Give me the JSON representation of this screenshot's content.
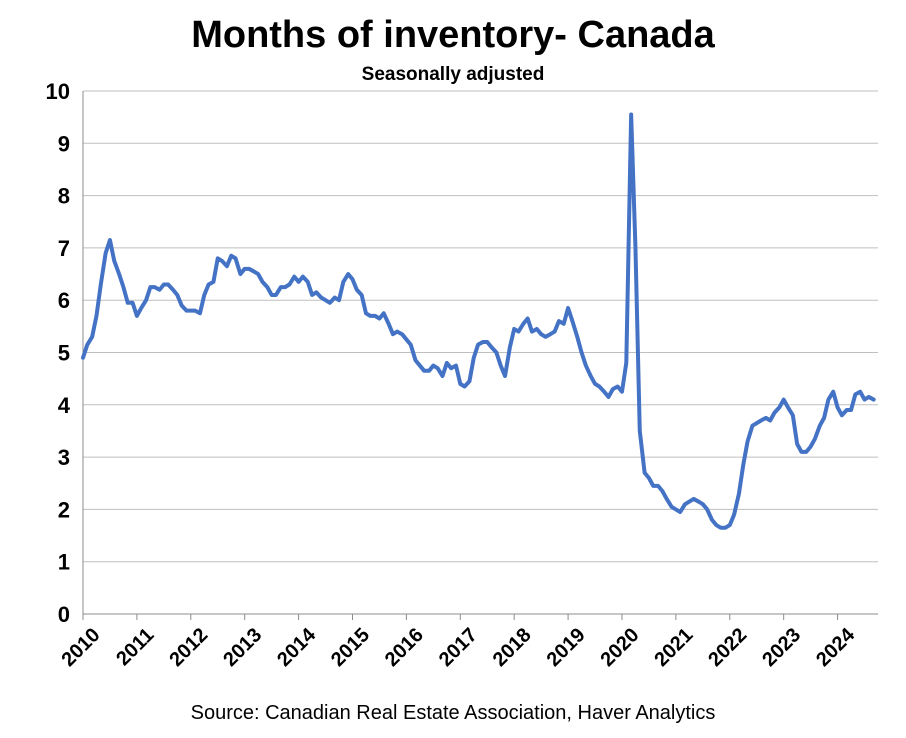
{
  "chart_data": {
    "type": "line",
    "title": "Months of inventory- Canada",
    "subtitle": "Seasonally adjusted",
    "source": "Source: Canadian Real Estate Association, Haver Analytics",
    "xlabel": "",
    "ylabel": "",
    "ylim": [
      0,
      10
    ],
    "yticks": [
      "0",
      "1",
      "2",
      "3",
      "4",
      "5",
      "6",
      "7",
      "8",
      "9",
      "10"
    ],
    "xticks": [
      "2010",
      "2011",
      "2012",
      "2013",
      "2014",
      "2015",
      "2016",
      "2017",
      "2018",
      "2019",
      "2020",
      "2021",
      "2022",
      "2023",
      "2024"
    ],
    "grid": true,
    "line_color": "#4472C4",
    "series": [
      {
        "x": [
          2010.0,
          2010.08,
          2010.17,
          2010.25,
          2010.33,
          2010.42,
          2010.5,
          2010.58,
          2010.67,
          2010.75,
          2010.83,
          2010.92,
          2011.0,
          2011.08,
          2011.17,
          2011.25,
          2011.33,
          2011.42,
          2011.5,
          2011.58,
          2011.67,
          2011.75,
          2011.83,
          2011.92,
          2012.0,
          2012.08,
          2012.17,
          2012.25,
          2012.33,
          2012.42,
          2012.5,
          2012.58,
          2012.67,
          2012.75,
          2012.83,
          2012.92,
          2013.0,
          2013.08,
          2013.17,
          2013.25,
          2013.33,
          2013.42,
          2013.5,
          2013.58,
          2013.67,
          2013.75,
          2013.83,
          2013.92,
          2014.0,
          2014.08,
          2014.17,
          2014.25,
          2014.33,
          2014.42,
          2014.5,
          2014.58,
          2014.67,
          2014.75,
          2014.83,
          2014.92,
          2015.0,
          2015.08,
          2015.17,
          2015.25,
          2015.33,
          2015.42,
          2015.5,
          2015.58,
          2015.67,
          2015.75,
          2015.83,
          2015.92,
          2016.0,
          2016.08,
          2016.17,
          2016.25,
          2016.33,
          2016.42,
          2016.5,
          2016.58,
          2016.67,
          2016.75,
          2016.83,
          2016.92,
          2017.0,
          2017.08,
          2017.17,
          2017.25,
          2017.33,
          2017.42,
          2017.5,
          2017.58,
          2017.67,
          2017.75,
          2017.83,
          2017.92,
          2018.0,
          2018.08,
          2018.17,
          2018.25,
          2018.33,
          2018.42,
          2018.5,
          2018.58,
          2018.67,
          2018.75,
          2018.83,
          2018.92,
          2019.0,
          2019.08,
          2019.17,
          2019.25,
          2019.33,
          2019.42,
          2019.5,
          2019.58,
          2019.67,
          2019.75,
          2019.83,
          2019.92,
          2020.0,
          2020.08,
          2020.17,
          2020.25,
          2020.33,
          2020.42,
          2020.5,
          2020.58,
          2020.67,
          2020.75,
          2020.83,
          2020.92,
          2021.0,
          2021.08,
          2021.17,
          2021.25,
          2021.33,
          2021.42,
          2021.5,
          2021.58,
          2021.67,
          2021.75,
          2021.83,
          2021.92,
          2022.0,
          2022.08,
          2022.17,
          2022.25,
          2022.33,
          2022.42,
          2022.5,
          2022.58,
          2022.67,
          2022.75,
          2022.83,
          2022.92,
          2023.0,
          2023.08,
          2023.17,
          2023.25,
          2023.33,
          2023.42,
          2023.5,
          2023.58,
          2023.67,
          2023.75,
          2023.83,
          2023.92,
          2024.0,
          2024.08,
          2024.17,
          2024.25,
          2024.33,
          2024.42,
          2024.5,
          2024.58,
          2024.67
        ],
        "values": [
          4.9,
          5.15,
          5.3,
          5.7,
          6.3,
          6.9,
          7.15,
          6.75,
          6.5,
          6.25,
          5.95,
          5.95,
          5.7,
          5.85,
          6.0,
          6.25,
          6.25,
          6.2,
          6.3,
          6.3,
          6.2,
          6.1,
          5.9,
          5.8,
          5.8,
          5.8,
          5.75,
          6.1,
          6.3,
          6.35,
          6.8,
          6.75,
          6.65,
          6.85,
          6.8,
          6.5,
          6.6,
          6.6,
          6.55,
          6.5,
          6.35,
          6.25,
          6.1,
          6.1,
          6.25,
          6.25,
          6.3,
          6.45,
          6.35,
          6.45,
          6.35,
          6.1,
          6.15,
          6.05,
          6.0,
          5.95,
          6.05,
          6.0,
          6.35,
          6.5,
          6.4,
          6.2,
          6.1,
          5.75,
          5.7,
          5.7,
          5.65,
          5.75,
          5.55,
          5.35,
          5.4,
          5.35,
          5.25,
          5.15,
          4.85,
          4.75,
          4.65,
          4.65,
          4.75,
          4.7,
          4.55,
          4.8,
          4.7,
          4.75,
          4.4,
          4.35,
          4.45,
          4.9,
          5.15,
          5.2,
          5.2,
          5.1,
          5.0,
          4.75,
          4.55,
          5.1,
          5.45,
          5.4,
          5.55,
          5.65,
          5.4,
          5.45,
          5.35,
          5.3,
          5.35,
          5.4,
          5.6,
          5.55,
          5.85,
          5.6,
          5.3,
          5.0,
          4.75,
          4.55,
          4.4,
          4.35,
          4.25,
          4.15,
          4.3,
          4.35,
          4.25,
          4.8,
          9.55,
          7.0,
          3.5,
          2.7,
          2.6,
          2.45,
          2.45,
          2.35,
          2.2,
          2.05,
          2.0,
          1.95,
          2.1,
          2.15,
          2.2,
          2.15,
          2.1,
          2.0,
          1.8,
          1.7,
          1.65,
          1.65,
          1.7,
          1.9,
          2.3,
          2.85,
          3.3,
          3.6,
          3.65,
          3.7,
          3.75,
          3.7,
          3.85,
          3.95,
          4.1,
          3.95,
          3.8,
          3.25,
          3.1,
          3.1,
          3.2,
          3.35,
          3.6,
          3.75,
          4.1,
          4.25,
          3.95,
          3.8,
          3.9,
          3.9,
          4.2,
          4.25,
          4.1,
          4.15,
          4.1
        ]
      }
    ]
  }
}
